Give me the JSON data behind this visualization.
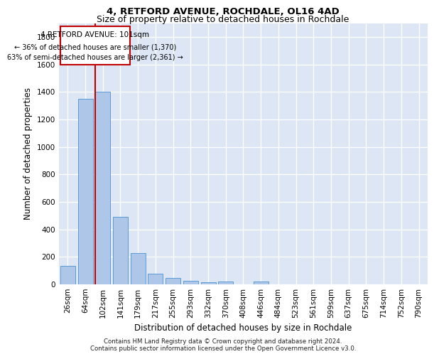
{
  "title1": "4, RETFORD AVENUE, ROCHDALE, OL16 4AD",
  "title2": "Size of property relative to detached houses in Rochdale",
  "xlabel": "Distribution of detached houses by size in Rochdale",
  "ylabel": "Number of detached properties",
  "footer": "Contains HM Land Registry data © Crown copyright and database right 2024.\nContains public sector information licensed under the Open Government Licence v3.0.",
  "bin_labels": [
    "26sqm",
    "64sqm",
    "102sqm",
    "141sqm",
    "179sqm",
    "217sqm",
    "255sqm",
    "293sqm",
    "332sqm",
    "370sqm",
    "408sqm",
    "446sqm",
    "484sqm",
    "523sqm",
    "561sqm",
    "599sqm",
    "637sqm",
    "675sqm",
    "714sqm",
    "752sqm",
    "790sqm"
  ],
  "bar_values": [
    135,
    1350,
    1400,
    490,
    225,
    75,
    45,
    28,
    18,
    20,
    0,
    20,
    0,
    0,
    0,
    0,
    0,
    0,
    0,
    0,
    0
  ],
  "bar_color": "#aec6e8",
  "bar_edge_color": "#5b9bd5",
  "highlight_color": "#c00000",
  "highlight_index": 2,
  "annotation_title": "4 RETFORD AVENUE: 101sqm",
  "annotation_line1": "← 36% of detached houses are smaller (1,370)",
  "annotation_line2": "63% of semi-detached houses are larger (2,361) →",
  "ylim_max": 1900,
  "background_color": "#dce6f5",
  "grid_color": "#ffffff",
  "title_fontsize": 9.5,
  "subtitle_fontsize": 9,
  "axis_label_fontsize": 8.5,
  "tick_fontsize": 7.5,
  "footer_fontsize": 6.2
}
